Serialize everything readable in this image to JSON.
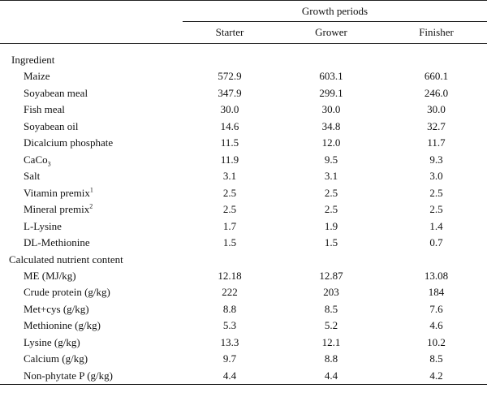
{
  "header": {
    "group_label": "Growth periods",
    "columns": [
      "Starter",
      "Grower",
      "Finisher"
    ]
  },
  "sections": [
    {
      "title": "Ingredient",
      "rows": [
        {
          "name": "Maize",
          "values": [
            "572.9",
            "603.1",
            "660.1"
          ]
        },
        {
          "name": "Soyabean meal",
          "values": [
            "347.9",
            "299.1",
            "246.0"
          ]
        },
        {
          "name": "Fish meal",
          "values": [
            "30.0",
            "30.0",
            "30.0"
          ]
        },
        {
          "name": "Soyabean oil",
          "values": [
            "14.6",
            "34.8",
            "32.7"
          ]
        },
        {
          "name": "Dicalcium phosphate",
          "values": [
            "11.5",
            "12.0",
            "11.7"
          ]
        },
        {
          "name": "CaCo",
          "sub": "3",
          "values": [
            "11.9",
            "9.5",
            "9.3"
          ]
        },
        {
          "name": "Salt",
          "values": [
            "3.1",
            "3.1",
            "3.0"
          ]
        },
        {
          "name": "Vitamin premix",
          "sup": "1",
          "values": [
            "2.5",
            "2.5",
            "2.5"
          ]
        },
        {
          "name": "Mineral premix",
          "sup": "2",
          "values": [
            "2.5",
            "2.5",
            "2.5"
          ]
        },
        {
          "name": "L-Lysine",
          "values": [
            "1.7",
            "1.9",
            "1.4"
          ]
        },
        {
          "name": "DL-Methionine",
          "values": [
            "1.5",
            "1.5",
            "0.7"
          ]
        }
      ]
    },
    {
      "title": "Calculated nutrient content",
      "rows": [
        {
          "name": "ME (MJ/kg)",
          "values": [
            "12.18",
            "12.87",
            "13.08"
          ]
        },
        {
          "name": "Crude protein (g/kg)",
          "values": [
            "222",
            "203",
            "184"
          ]
        },
        {
          "name": "Met+cys (g/kg)",
          "values": [
            "8.8",
            "8.5",
            "7.6"
          ]
        },
        {
          "name": "Methionine (g/kg)",
          "values": [
            "5.3",
            "5.2",
            "4.6"
          ]
        },
        {
          "name": "Lysine (g/kg)",
          "values": [
            "13.3",
            "12.1",
            "10.2"
          ]
        },
        {
          "name": "Calcium (g/kg)",
          "values": [
            "9.7",
            "8.8",
            "8.5"
          ]
        },
        {
          "name": "Non-phytate P (g/kg)",
          "values": [
            "4.4",
            "4.4",
            "4.2"
          ]
        }
      ]
    }
  ]
}
